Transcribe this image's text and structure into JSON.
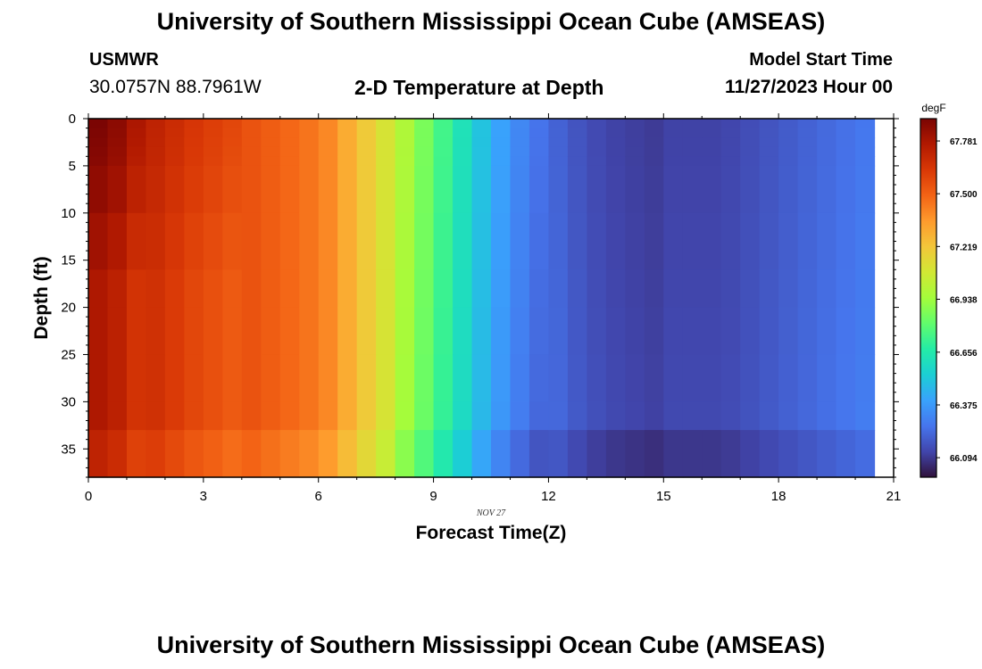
{
  "header": {
    "title": "University of Southern Mississippi Ocean Cube (AMSEAS)",
    "station": "USMWR",
    "coordinates": "30.0757N  88.7961W",
    "subtitle": "2-D Temperature at Depth",
    "model_start_label": "Model Start Time",
    "model_start_value": "11/27/2023 Hour 00"
  },
  "footer": {
    "title": "University of Southern Mississippi Ocean Cube (AMSEAS)"
  },
  "chart_data": {
    "type": "heatmap",
    "title": "2-D Temperature at Depth",
    "xlabel": "Forecast Time(Z)",
    "ylabel": "Depth (ft)",
    "date_label": "NOV 27",
    "xlim": [
      0,
      21
    ],
    "ylim": [
      0,
      38
    ],
    "y_inverted": true,
    "x_ticks": [
      0,
      3,
      6,
      9,
      12,
      15,
      18,
      21
    ],
    "y_ticks": [
      0,
      5,
      10,
      15,
      20,
      25,
      30,
      35
    ],
    "colorbar": {
      "label": "degF",
      "ticks": [
        "67.781",
        "67.500",
        "67.219",
        "66.938",
        "66.656",
        "66.375",
        "66.094"
      ],
      "min": 65.99,
      "max": 67.9,
      "colormap": [
        "#30123b",
        "#4145ab",
        "#4675ed",
        "#39a2fc",
        "#1bcfd4",
        "#24eca6",
        "#61fc6c",
        "#a4fc3b",
        "#d1e834",
        "#f3c63a",
        "#fe9b2d",
        "#f36315",
        "#d93806",
        "#b11901",
        "#7a0403"
      ]
    },
    "x_step": 0.5,
    "depth_levels": [
      0,
      1,
      2,
      3,
      4,
      5,
      10,
      16,
      20,
      25,
      30,
      33,
      38
    ],
    "surface_temps": [
      67.9,
      67.86,
      67.78,
      67.72,
      67.68,
      67.64,
      67.61,
      67.58,
      67.54,
      67.51,
      67.48,
      67.45,
      67.4,
      67.3,
      67.2,
      67.1,
      66.98,
      66.86,
      66.74,
      66.62,
      66.5,
      66.4,
      66.32,
      66.26,
      66.21,
      66.17,
      66.14,
      66.12,
      66.11,
      66.1,
      66.12,
      66.12,
      66.12,
      66.13,
      66.15,
      66.17,
      66.19,
      66.21,
      66.23,
      66.25,
      66.27,
      66.28
    ]
  }
}
